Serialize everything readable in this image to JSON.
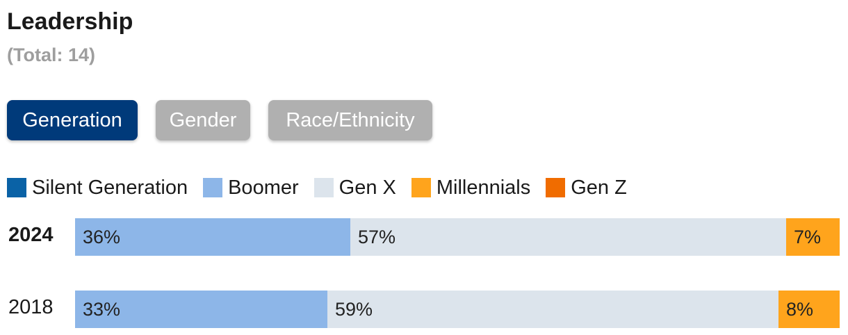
{
  "header": {
    "title": "Leadership",
    "subtitle": "(Total: 14)"
  },
  "tabs": [
    {
      "label": "Generation",
      "active": true
    },
    {
      "label": "Gender",
      "active": false
    },
    {
      "label": "Race/Ethnicity",
      "active": false
    }
  ],
  "colors": {
    "active_tab": "#003a7a",
    "inactive_tab": "#b0b0b0"
  },
  "chart_data": {
    "type": "bar",
    "orientation": "horizontal",
    "stacked": true,
    "value_unit": "%",
    "xlim": [
      0,
      100
    ],
    "grid": false,
    "legend_position": "top-left",
    "categories": [
      "2024",
      "2018"
    ],
    "highlighted_category": "2024",
    "series": [
      {
        "name": "Silent Generation",
        "color": "#0a62a6",
        "values": [
          0,
          0
        ]
      },
      {
        "name": "Boomer",
        "color": "#8db6e8",
        "values": [
          36,
          33
        ]
      },
      {
        "name": "Gen X",
        "color": "#dce4ec",
        "values": [
          57,
          59
        ]
      },
      {
        "name": "Millennials",
        "color": "#ffa41c",
        "values": [
          7,
          8
        ]
      },
      {
        "name": "Gen Z",
        "color": "#f06c00",
        "values": [
          0,
          0
        ]
      }
    ]
  }
}
